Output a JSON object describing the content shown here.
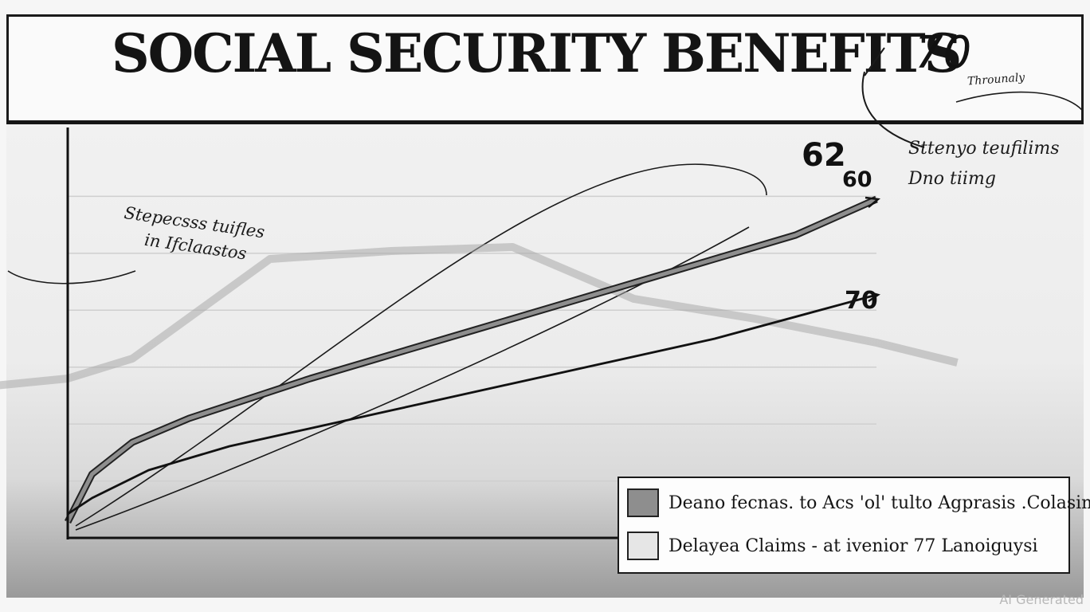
{
  "header": {
    "title": "SOCIAL SECURITY BENEFITS",
    "corner_label": "70"
  },
  "annotations": {
    "top_right_small": "Throunaly",
    "right_note_line1": "Sttenyo teufilims",
    "right_note_line2": "Dno tiimg",
    "left_note_line1": "Stepecsss tuifles",
    "left_note_line2": "in Ifclaastos",
    "label_62": "62",
    "label_60": "60",
    "label_70": "70"
  },
  "legend": {
    "items": [
      {
        "label": "Deano fecnas. to Acs 'ol' tulto Agprasis .Colasim",
        "color": "#8e8e8e"
      },
      {
        "label": "Delayea Claims - at ivenior 77 Lanoiguysi",
        "color": "#e6e6e6"
      }
    ]
  },
  "watermark": "AI Generated",
  "chart_data": {
    "type": "line",
    "title": "SOCIAL SECURITY BENEFITS",
    "xlabel": "",
    "ylabel": "",
    "grid": true,
    "legend_position": "bottom-right",
    "xlim": [
      0,
      100
    ],
    "ylim": [
      0,
      100
    ],
    "series": [
      {
        "name": "Deano fecnas. to Acs 'ol' tulto Agprasis .Colasim",
        "color": "#8e8e8e",
        "x": [
          0,
          3,
          8,
          15,
          30,
          50,
          70,
          90,
          100
        ],
        "y": [
          4,
          16,
          24,
          30,
          40,
          52,
          64,
          76,
          85
        ]
      },
      {
        "name": "Delayea Claims - at ivenior 77 Lanoiguysi",
        "color": "#111111",
        "x": [
          0,
          3,
          10,
          20,
          40,
          60,
          80,
          100
        ],
        "y": [
          6,
          10,
          17,
          23,
          32,
          41,
          50,
          61
        ]
      },
      {
        "name": "",
        "color": "#aaaaaa",
        "x": [
          -10,
          0,
          8,
          25,
          40,
          55,
          70,
          85,
          100,
          110
        ],
        "y": [
          38,
          40,
          45,
          70,
          72,
          73,
          60,
          55,
          49,
          44
        ]
      }
    ]
  }
}
